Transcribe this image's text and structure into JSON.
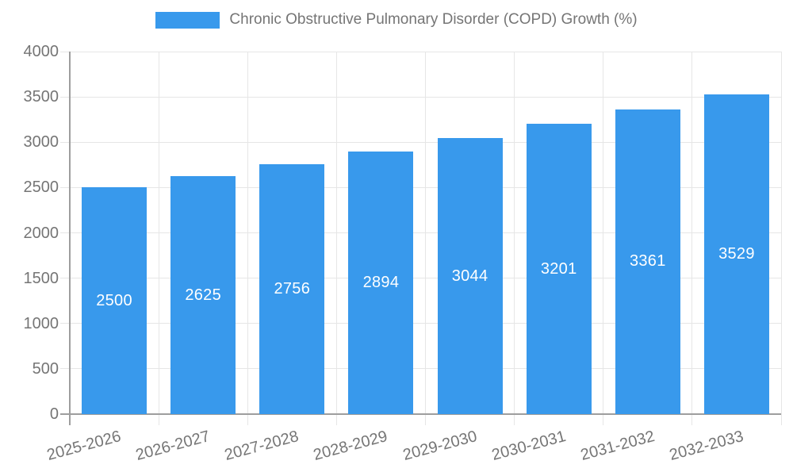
{
  "legend": {
    "series_label": "Chronic Obstructive Pulmonary Disorder (COPD) Growth (%)"
  },
  "colors": {
    "bar": "#3899ec",
    "label_text": "#757575",
    "grid": "#e6e6e6",
    "axis": "#9e9e9e",
    "value_label": "#ffffff",
    "background": "#ffffff"
  },
  "chart_data": {
    "type": "bar",
    "title": "Chronic Obstructive Pulmonary Disorder (COPD) Growth (%)",
    "categories": [
      "2025-2026",
      "2026-2027",
      "2027-2028",
      "2028-2029",
      "2029-2030",
      "2030-2031",
      "2031-2032",
      "2032-2033"
    ],
    "values": [
      2500,
      2625,
      2756,
      2894,
      3044,
      3201,
      3361,
      3529
    ],
    "xlabel": "",
    "ylabel": "",
    "ylim": [
      0,
      4000
    ],
    "ytick_step": 500,
    "ytick_labels": [
      "0",
      "500",
      "1000",
      "1500",
      "2000",
      "2500",
      "3000",
      "3500",
      "4000"
    ],
    "grid": true,
    "legend_position": "top",
    "value_labels": "inside-center",
    "x_tick_rotation_deg": -15
  }
}
